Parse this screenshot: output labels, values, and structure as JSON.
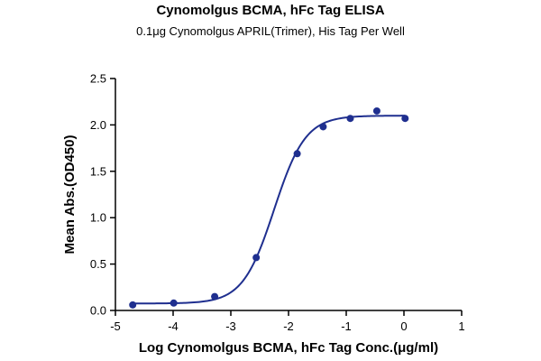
{
  "chart_data": {
    "type": "scatter",
    "title": "Cynomolgus BCMA, hFc Tag ELISA",
    "subtitle": "0.1μg Cynomolgus APRIL(Trimer), His Tag Per Well",
    "xlabel": "Log Cynomolgus BCMA, hFc Tag Conc.(μg/ml)",
    "ylabel": "Mean Abs.(OD450)",
    "xlim": [
      -5,
      1
    ],
    "ylim": [
      0.0,
      2.5
    ],
    "x_ticks": [
      -5,
      -4,
      -3,
      -2,
      -1,
      0,
      1
    ],
    "x_tick_labels": [
      "-5",
      "-4",
      "-3",
      "-2",
      "-1",
      "0",
      "1"
    ],
    "y_ticks": [
      0.0,
      0.5,
      1.0,
      1.5,
      2.0,
      2.5
    ],
    "y_tick_labels": [
      "0.0",
      "0.5",
      "1.0",
      "1.5",
      "2.0",
      "2.5"
    ],
    "grid": false,
    "color": "#1f2f8f",
    "points": {
      "x": [
        -4.7,
        -3.99,
        -3.28,
        -2.56,
        -1.85,
        -1.4,
        -0.93,
        -0.47,
        0.02
      ],
      "y": [
        0.06,
        0.08,
        0.15,
        0.57,
        1.69,
        1.98,
        2.07,
        2.15,
        2.07
      ]
    },
    "fit": {
      "model": "4PL",
      "bottom": 0.075,
      "top": 2.1,
      "log_ec50": -2.25,
      "hill_slope": 1.6
    }
  }
}
